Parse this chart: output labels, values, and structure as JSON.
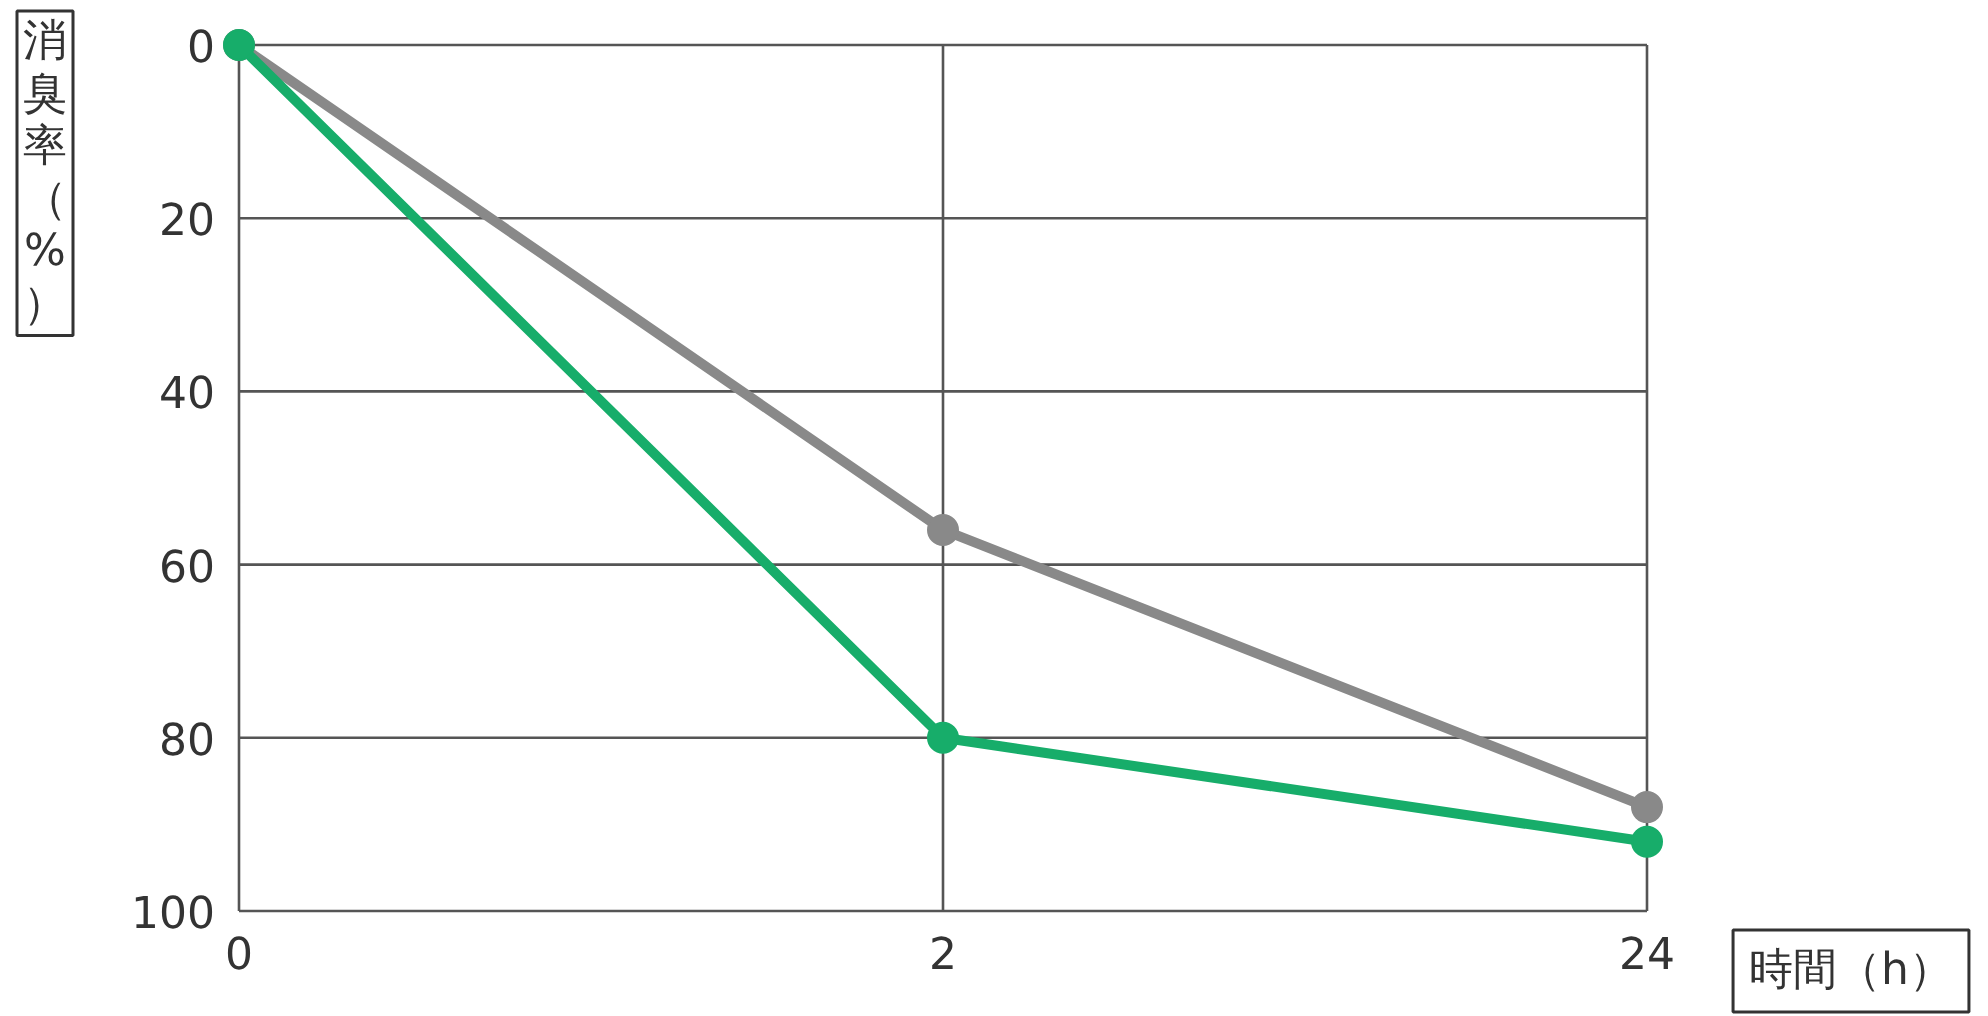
{
  "chart_data": {
    "type": "line",
    "xlabel": "時間（h）",
    "ylabel": "消臭率（%）",
    "categories": [
      "0",
      "2",
      "24"
    ],
    "series": [
      {
        "color": "#898989",
        "values": [
          0,
          56,
          88
        ]
      },
      {
        "color": "#17ad6a",
        "values": [
          0,
          80,
          92
        ]
      }
    ],
    "ylim": [
      100,
      0
    ],
    "yticks": [
      0,
      20,
      40,
      60,
      80,
      100
    ],
    "grid": true,
    "marker": "circle",
    "line_style": "solid"
  }
}
